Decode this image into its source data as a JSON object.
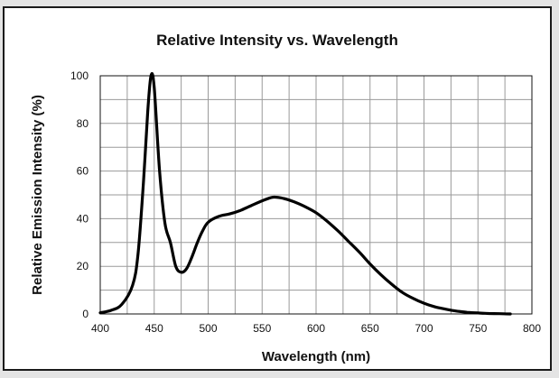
{
  "chart_data": {
    "type": "line",
    "title": "Relative Intensity vs. Wavelength",
    "xlabel": "Wavelength (nm)",
    "ylabel": "Relative Emission Intensity (%)",
    "xlim": [
      400,
      800
    ],
    "ylim": [
      0,
      100
    ],
    "x_ticks": [
      400,
      450,
      500,
      550,
      600,
      650,
      700,
      750,
      800
    ],
    "y_ticks": [
      0,
      20,
      40,
      60,
      80,
      100
    ],
    "x_grid_step": 25,
    "y_grid_step": 10,
    "grid": true,
    "series": [
      {
        "name": "",
        "color": "#000000",
        "points": [
          [
            400,
            0.5
          ],
          [
            410,
            1.5
          ],
          [
            420,
            4
          ],
          [
            430,
            12
          ],
          [
            435,
            25
          ],
          [
            440,
            55
          ],
          [
            444,
            85
          ],
          [
            447,
            100
          ],
          [
            450,
            95
          ],
          [
            455,
            60
          ],
          [
            460,
            38
          ],
          [
            465,
            30
          ],
          [
            470,
            20
          ],
          [
            475,
            17.5
          ],
          [
            480,
            19
          ],
          [
            485,
            24
          ],
          [
            490,
            30
          ],
          [
            495,
            35
          ],
          [
            500,
            38.5
          ],
          [
            510,
            41
          ],
          [
            520,
            42
          ],
          [
            530,
            43.5
          ],
          [
            540,
            45.5
          ],
          [
            550,
            47.5
          ],
          [
            560,
            49
          ],
          [
            570,
            48.5
          ],
          [
            580,
            47
          ],
          [
            590,
            45
          ],
          [
            600,
            42.5
          ],
          [
            610,
            39
          ],
          [
            620,
            35
          ],
          [
            630,
            30.5
          ],
          [
            640,
            26
          ],
          [
            650,
            21
          ],
          [
            660,
            16.5
          ],
          [
            670,
            12.5
          ],
          [
            680,
            9
          ],
          [
            690,
            6.5
          ],
          [
            700,
            4.5
          ],
          [
            710,
            3
          ],
          [
            720,
            2
          ],
          [
            730,
            1.2
          ],
          [
            740,
            0.7
          ],
          [
            750,
            0.4
          ],
          [
            760,
            0.2
          ],
          [
            770,
            0.1
          ],
          [
            780,
            0
          ]
        ]
      }
    ]
  }
}
